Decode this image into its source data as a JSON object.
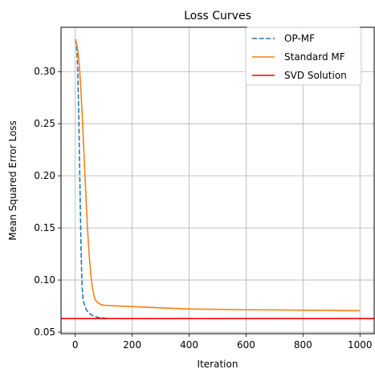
{
  "chart_data": {
    "type": "line",
    "title": "Loss Curves",
    "xlabel": "Iteration",
    "ylabel": "Mean Squared Error Loss",
    "xlim": [
      -50,
      1050
    ],
    "ylim": [
      0.0485,
      0.3425
    ],
    "xticks": [
      0,
      200,
      400,
      600,
      800,
      1000
    ],
    "xtick_labels": [
      "0",
      "200",
      "400",
      "600",
      "800",
      "1000"
    ],
    "yticks": [
      0.05,
      0.1,
      0.15,
      0.2,
      0.25,
      0.3
    ],
    "ytick_labels": [
      "0.05",
      "0.10",
      "0.15",
      "0.20",
      "0.25",
      "0.30"
    ],
    "grid": true,
    "legend_position": "upper-right",
    "series": [
      {
        "name": "OP-MF",
        "color": "#1f77b4",
        "style": "dashed",
        "x": [
          0,
          3,
          6,
          9,
          12,
          15,
          18,
          21,
          24,
          27,
          30,
          35,
          40,
          50,
          60,
          70,
          80,
          90,
          100,
          110
        ],
        "y": [
          0.331,
          0.328,
          0.318,
          0.298,
          0.262,
          0.215,
          0.165,
          0.122,
          0.094,
          0.083,
          0.078,
          0.074,
          0.071,
          0.068,
          0.066,
          0.065,
          0.064,
          0.0638,
          0.0635,
          0.0632
        ]
      },
      {
        "name": "Standard MF",
        "color": "#ff7f0e",
        "style": "solid",
        "x": [
          0,
          5,
          10,
          15,
          20,
          25,
          30,
          35,
          40,
          45,
          50,
          55,
          60,
          65,
          70,
          80,
          90,
          100,
          120,
          150,
          200,
          300,
          400,
          500,
          600,
          700,
          800,
          900,
          1000
        ],
        "y": [
          0.331,
          0.327,
          0.318,
          0.303,
          0.282,
          0.255,
          0.225,
          0.195,
          0.165,
          0.14,
          0.12,
          0.104,
          0.093,
          0.086,
          0.081,
          0.078,
          0.0765,
          0.0758,
          0.0755,
          0.0751,
          0.0745,
          0.0733,
          0.0722,
          0.0718,
          0.0715,
          0.0713,
          0.0711,
          0.0709,
          0.0706
        ]
      },
      {
        "name": "SVD Solution",
        "color": "#ff0000",
        "style": "hline",
        "y_value": 0.063
      }
    ]
  }
}
